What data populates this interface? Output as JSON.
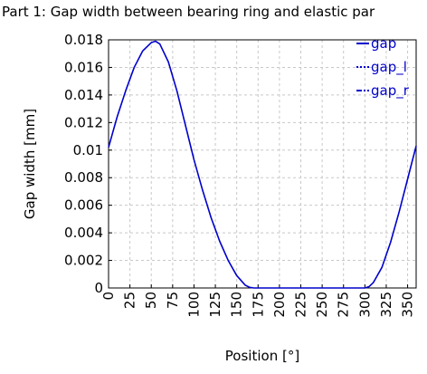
{
  "chart_data": {
    "type": "line",
    "title": "Part 1: Gap width between bearing ring and elastic par",
    "xlabel": "Position [°]",
    "ylabel": "Gap width [mm]",
    "xlim": [
      0,
      360
    ],
    "ylim": [
      0,
      0.018
    ],
    "x_ticks": [
      0,
      25,
      50,
      75,
      100,
      125,
      150,
      175,
      200,
      225,
      250,
      275,
      300,
      325,
      350
    ],
    "x_tick_labels": [
      "0",
      "25",
      "50",
      "75",
      "100",
      "125",
      "150",
      "175",
      "200",
      "225",
      "250",
      "275",
      "300",
      "325",
      "350"
    ],
    "y_ticks": [
      0,
      0.002,
      0.004,
      0.006,
      0.008,
      0.01,
      0.012,
      0.014,
      0.016,
      0.018
    ],
    "y_tick_labels": [
      "0",
      "0.002",
      "0.004",
      "0.006",
      "0.008",
      "0.01",
      "0.012",
      "0.014",
      "0.016",
      "0.018"
    ],
    "grid": true,
    "legend_position": "top-right",
    "legend": [
      {
        "label": "gap",
        "style": "solid"
      },
      {
        "label": "gap_l",
        "style": "dotted"
      },
      {
        "label": "gap_r",
        "style": "dashdot"
      }
    ],
    "series": [
      {
        "name": "gap",
        "color": "#0000cc",
        "x": [
          0,
          10,
          20,
          30,
          40,
          50,
          55,
          60,
          70,
          80,
          90,
          100,
          110,
          120,
          130,
          140,
          150,
          160,
          165,
          170,
          180,
          200,
          220,
          240,
          260,
          280,
          300,
          305,
          310,
          320,
          330,
          340,
          350,
          360
        ],
        "y": [
          0.0102,
          0.0124,
          0.0143,
          0.016,
          0.0172,
          0.0178,
          0.0179,
          0.0177,
          0.0164,
          0.0143,
          0.0118,
          0.0093,
          0.0071,
          0.0051,
          0.0034,
          0.002,
          0.0009,
          0.0002,
          5e-05,
          0,
          0,
          0,
          0,
          0,
          0,
          0,
          0,
          0.0001,
          0.0004,
          0.0015,
          0.0033,
          0.0055,
          0.0079,
          0.0103
        ]
      }
    ]
  }
}
